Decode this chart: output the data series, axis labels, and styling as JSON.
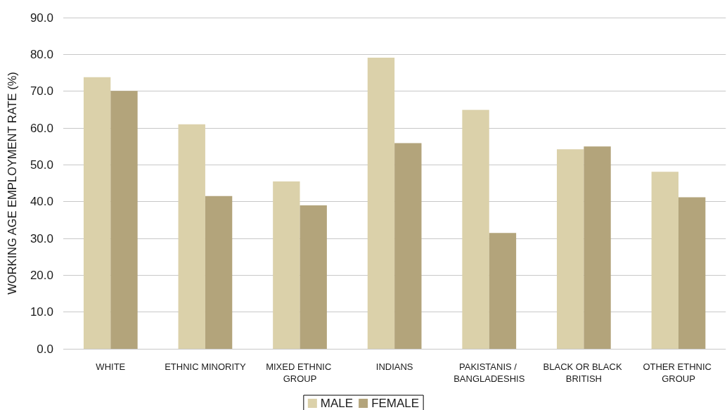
{
  "chart_data": {
    "type": "bar",
    "ylabel": "WORKING AGE EMPLOYMENT RATE (%)",
    "categories": [
      "WHITE",
      "ETHNIC MINORITY",
      "MIXED ETHNIC GROUP",
      "INDIANS",
      "PAKISTANIS / BANGLADESHIS",
      "BLACK OR BLACK BRITISH",
      "OTHER ETHNIC GROUP"
    ],
    "series": [
      {
        "name": "MALE",
        "color": "#dbd1aa",
        "values": [
          73.8,
          61.0,
          45.5,
          79.1,
          64.9,
          54.2,
          48.1
        ]
      },
      {
        "name": "FEMALE",
        "color": "#b3a47b",
        "values": [
          70.1,
          41.5,
          39.0,
          55.9,
          31.5,
          55.0,
          41.2
        ]
      }
    ],
    "ylim": [
      0,
      90
    ],
    "yticks": [
      {
        "value": 0,
        "label": "0.0"
      },
      {
        "value": 10,
        "label": "10.0"
      },
      {
        "value": 20,
        "label": "20.0"
      },
      {
        "value": 30,
        "label": "30.0"
      },
      {
        "value": 40,
        "label": "40.0"
      },
      {
        "value": 50,
        "label": "50.0"
      },
      {
        "value": 60,
        "label": "60.0"
      },
      {
        "value": 70,
        "label": "70.0"
      },
      {
        "value": 80,
        "label": "80.0"
      },
      {
        "value": 90,
        "label": "90.0"
      }
    ],
    "grid": "y",
    "legend": "bottom"
  }
}
